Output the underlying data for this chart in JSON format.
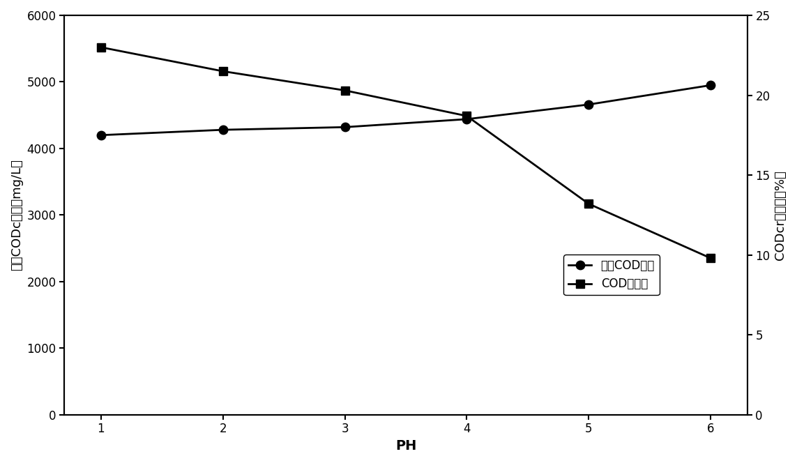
{
  "ph_values": [
    1,
    2,
    3,
    4,
    5,
    6
  ],
  "cod_concentration": [
    4200,
    4280,
    4320,
    4440,
    4660,
    4950
  ],
  "cod_removal_rate": [
    23,
    21.5,
    20.3,
    18.7,
    13.2,
    9.8
  ],
  "left_ylim": [
    0,
    6000
  ],
  "left_yticks": [
    0,
    1000,
    2000,
    3000,
    4000,
    5000,
    6000
  ],
  "right_ylim": [
    0,
    25
  ],
  "right_yticks": [
    0,
    5,
    10,
    15,
    20,
    25
  ],
  "xlabel": "PH",
  "left_ylabel": "出水CODc浓度（mg/L）",
  "right_ylabel": "CODcr去除率（%）",
  "legend_cod_conc": "出水COD浓度",
  "legend_cod_removal": "COD去除率",
  "line_color": "#000000",
  "marker_circle": "o",
  "marker_square": "s",
  "markersize": 9,
  "linewidth": 2.0,
  "markerfacecolor": "#000000",
  "fig_width": 11.43,
  "fig_height": 6.64,
  "dpi": 100
}
